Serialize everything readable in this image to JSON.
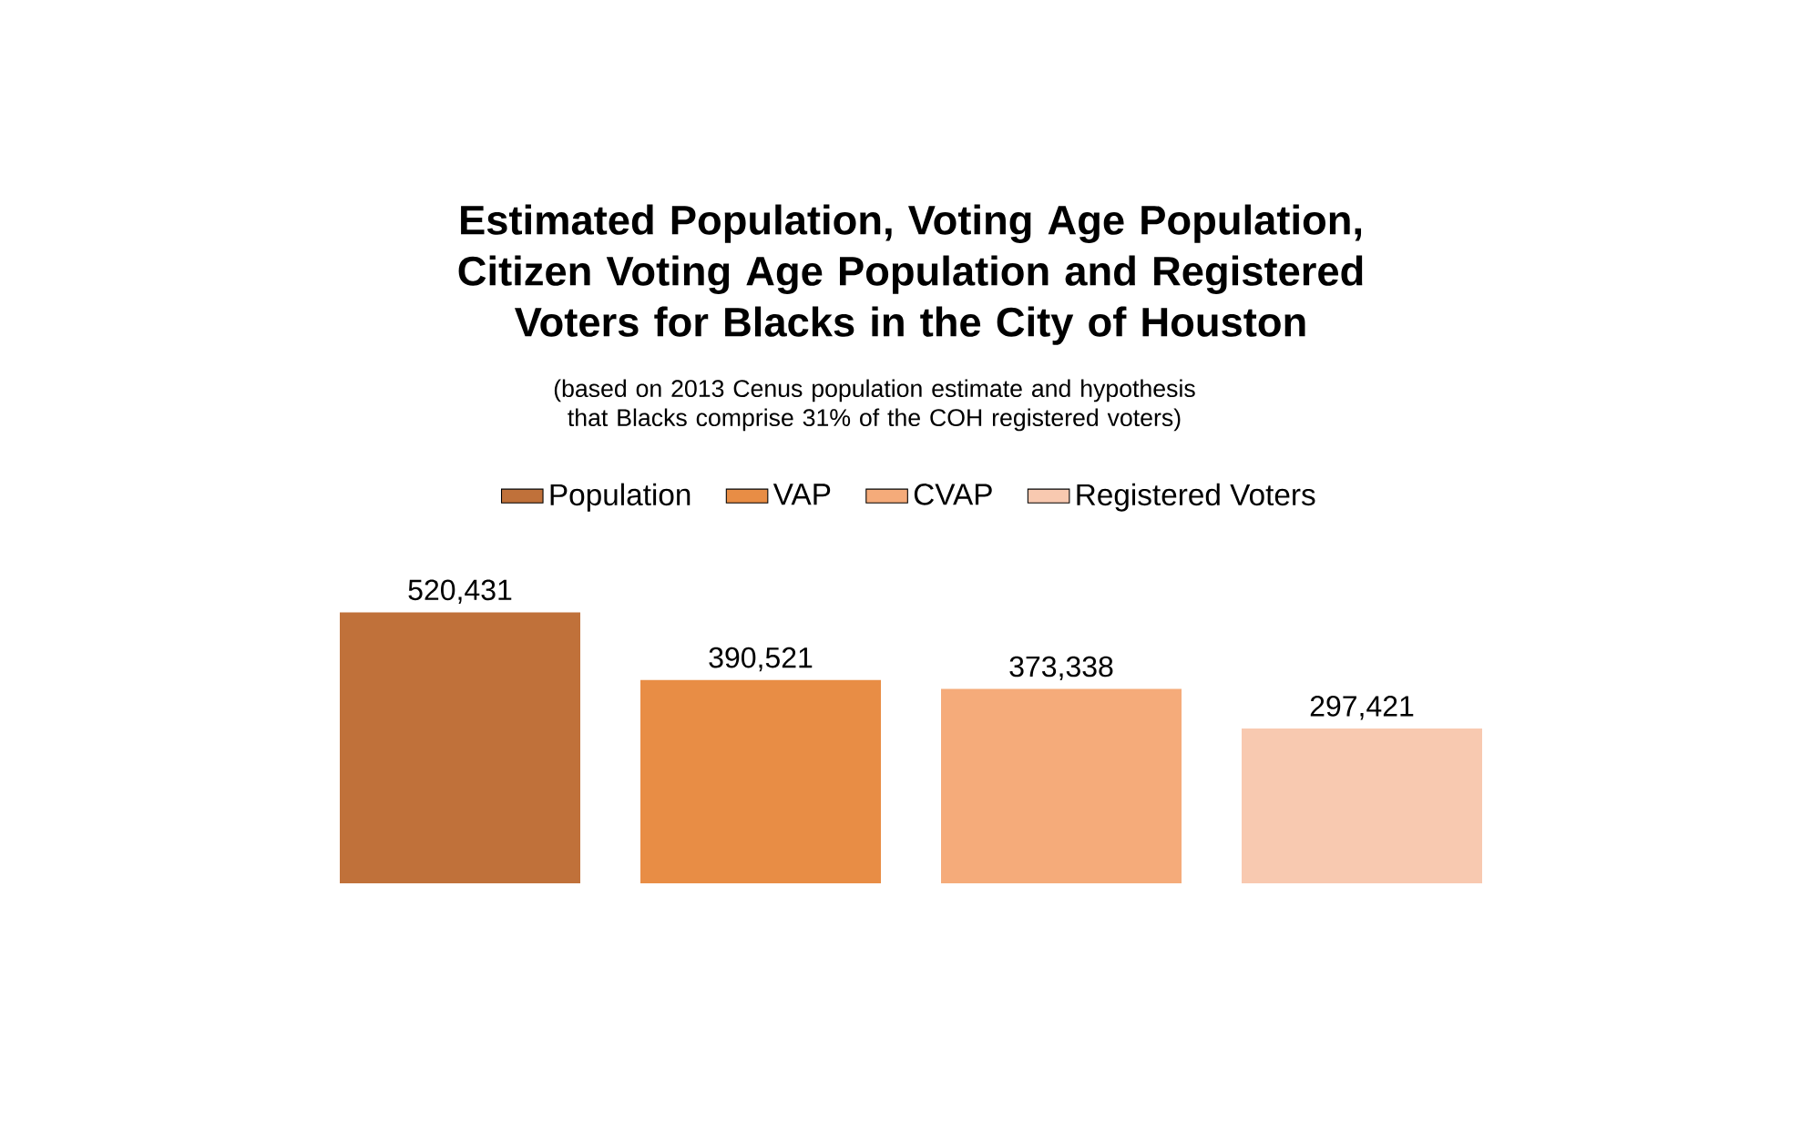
{
  "chart_data": {
    "type": "bar",
    "title": "Estimated Population, Voting Age Population, Citizen Voting Age Population and Registered Voters for Blacks in the City of Houston",
    "subtitle": "(based on 2013 Cenus population estimate and hypothesis that Blacks comprise 31% of the COH registered voters)",
    "categories": [
      null
    ],
    "series": [
      {
        "name": "Population",
        "color": "#c0713a",
        "values": [
          520431
        ],
        "value_labels": [
          "520,431"
        ]
      },
      {
        "name": "VAP",
        "color": "#e88d45",
        "values": [
          390521
        ],
        "value_labels": [
          "390,521"
        ]
      },
      {
        "name": "CVAP",
        "color": "#f5ab7a",
        "values": [
          373338
        ],
        "value_labels": [
          "373,338"
        ]
      },
      {
        "name": "Registered Voters",
        "color": "#f8c9b0",
        "values": [
          297421
        ],
        "value_labels": [
          "297,421"
        ]
      }
    ],
    "legend": "top"
  }
}
